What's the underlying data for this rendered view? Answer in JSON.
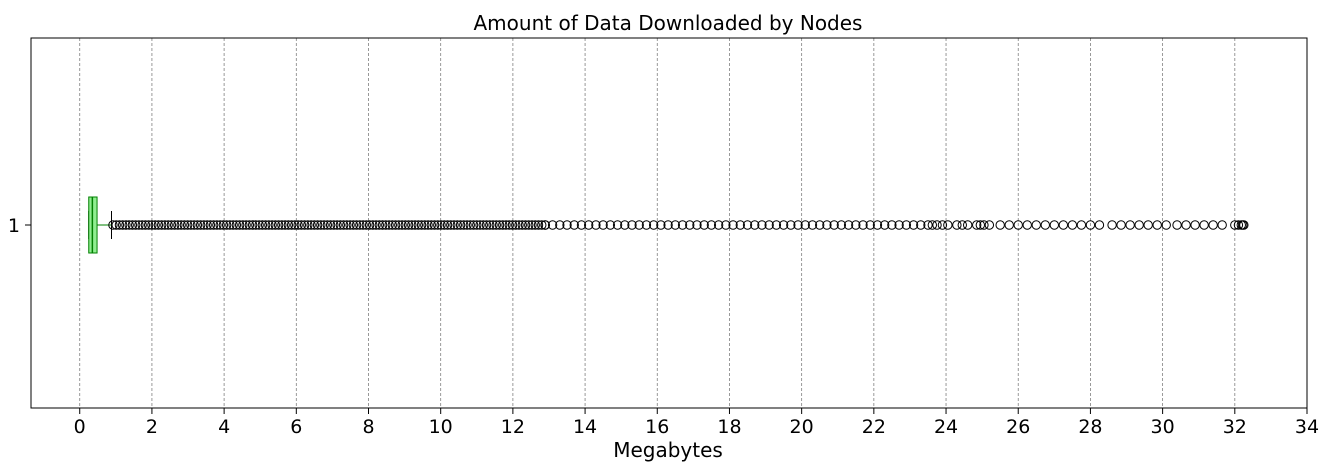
{
  "chart_data": {
    "type": "boxplot",
    "orientation": "horizontal",
    "title": "Amount of Data Downloaded by Nodes",
    "xlabel": "Megabytes",
    "ylabel": "",
    "xlim": [
      -1.35,
      34
    ],
    "xticks": [
      0,
      2,
      4,
      6,
      8,
      10,
      12,
      14,
      16,
      18,
      20,
      22,
      24,
      26,
      28,
      30,
      32,
      34
    ],
    "yticks": [
      "1"
    ],
    "grid": {
      "x": true,
      "y": false,
      "style": "dashed"
    },
    "colors": {
      "box_fill": "#90EE90",
      "box_edge": "#008000",
      "median": "#008000",
      "whisker": "#008000",
      "flier": "#000000",
      "grid": "#808080"
    },
    "box": {
      "category": "1",
      "whisker_low": 0.25,
      "q1": 0.25,
      "median": 0.35,
      "q3": 0.48,
      "whisker_high": 0.88
    },
    "fliers": {
      "dense_ranges": [
        [
          0.92,
          12.9
        ]
      ],
      "dense_step": 0.09,
      "medium_ranges": [
        [
          12.9,
          23.3
        ]
      ],
      "medium_step": 0.2,
      "points": [
        23.5,
        23.62,
        23.75,
        23.9,
        24.05,
        24.3,
        24.45,
        24.6,
        24.85,
        24.95,
        25.05,
        25.2,
        25.5,
        25.75,
        26.0,
        26.25,
        26.5,
        26.75,
        27.0,
        27.25,
        27.5,
        27.75,
        28.0,
        28.25,
        28.6,
        28.85,
        29.1,
        29.35,
        29.6,
        29.85,
        30.1,
        30.4,
        30.65,
        30.9,
        31.15,
        31.4,
        31.65,
        32.0,
        32.1,
        32.18,
        32.22,
        32.25
      ]
    }
  }
}
